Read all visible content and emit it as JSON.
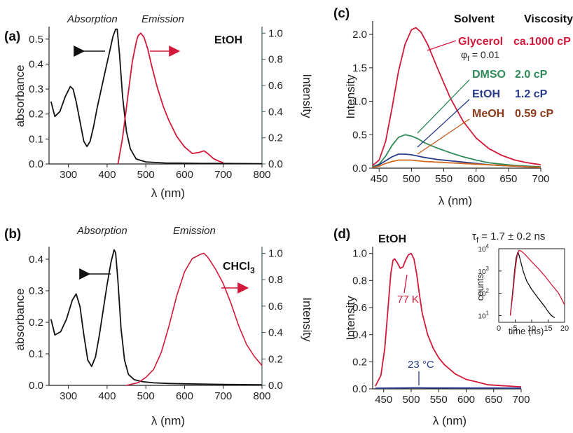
{
  "colors": {
    "black": "#111111",
    "red": "#d2193a",
    "green": "#2e8b57",
    "blue": "#2a3c8c",
    "brown": "#8b3a1a",
    "orange": "#d2691e",
    "axis_right": "#3d5c5c"
  },
  "panels": {
    "a": {
      "label": "(a)",
      "absorption_label": "Absorption",
      "emission_label": "Emission",
      "solvent": "EtOH",
      "ylabel_left": "absorbance",
      "ylabel_right": "Intensity",
      "xlabel": "λ (nm)",
      "xticks": [
        "300",
        "400",
        "500",
        "600",
        "700",
        "800"
      ],
      "yticks_left": [
        "0.0",
        "0.1",
        "0.2",
        "0.3",
        "0.4",
        "0.5"
      ],
      "yticks_right": [
        "0.0",
        "0.2",
        "0.4",
        "0.6",
        "0.8",
        "1.0"
      ]
    },
    "b": {
      "label": "(b)",
      "absorption_label": "Absorption",
      "emission_label": "Emission",
      "solvent": "CHCl",
      "solvent_sub": "3",
      "ylabel_left": "absorbance",
      "ylabel_right": "Intensity",
      "xlabel": "λ (nm)",
      "xticks": [
        "300",
        "400",
        "500",
        "600",
        "700",
        "800"
      ],
      "yticks_left": [
        "0.0",
        "0.1",
        "0.2",
        "0.3",
        "0.4"
      ],
      "yticks_right": [
        "0.0",
        "0.2",
        "0.4",
        "0.6",
        "0.8",
        "1.0"
      ]
    },
    "c": {
      "label": "(c)",
      "header_solvent": "Solvent",
      "header_viscosity": "Viscosity",
      "ylabel": "Intensity",
      "xlabel": "λ (nm)",
      "xticks": [
        "450",
        "500",
        "550",
        "600",
        "650",
        "700"
      ],
      "yticks": [
        "0.0",
        "0.5",
        "1.0",
        "1.5",
        "2.0"
      ],
      "phi_prefix": "φ",
      "phi_sub": "f",
      "phi_value": " = 0.01",
      "rows": [
        {
          "name": "Glycerol",
          "viscosity": "ca.1000 cP"
        },
        {
          "name": "DMSO",
          "viscosity": "2.0 cP"
        },
        {
          "name": "EtOH",
          "viscosity": "1.2 cP"
        },
        {
          "name": "MeOH",
          "viscosity": "0.59 cP"
        }
      ]
    },
    "d": {
      "label": "(d)",
      "solvent": "EtOH",
      "ylabel": "Intensity",
      "xlabel": "λ (nm)",
      "xticks": [
        "450",
        "500",
        "550",
        "600",
        "650",
        "700"
      ],
      "yticks": [
        "0.0",
        "0.2",
        "0.4",
        "0.6",
        "0.8",
        "1.0"
      ],
      "label_77k": "77 K",
      "label_23c": "23 °C",
      "tau_prefix": "τ",
      "tau_sub": "f",
      "tau_value": " = 1.7 ± 0.2 ns",
      "inset": {
        "ylabel": "counts",
        "xlabel": "time (ns)",
        "xticks": [
          "0",
          "5",
          "10",
          "15",
          "20"
        ],
        "ytick_base": "10",
        "ytick_exps": [
          "1",
          "2",
          "3",
          "4"
        ]
      }
    }
  },
  "chart_data": [
    {
      "panel": "a",
      "type": "line",
      "xlabel": "λ (nm)",
      "ylabel": "absorbance",
      "ylabel_right": "Intensity",
      "xlim": [
        250,
        800
      ],
      "ylim": [
        0,
        0.55
      ],
      "ylim_right": [
        0,
        1.05
      ],
      "series": [
        {
          "name": "Absorption",
          "axis": "left",
          "x": [
            255,
            265,
            278,
            292,
            305,
            312,
            320,
            330,
            340,
            348,
            356,
            365,
            375,
            385,
            395,
            405,
            415,
            422,
            426,
            432,
            440,
            450,
            460,
            475,
            500,
            550,
            600,
            650,
            700,
            800
          ],
          "y": [
            0.25,
            0.19,
            0.21,
            0.27,
            0.31,
            0.3,
            0.25,
            0.17,
            0.09,
            0.07,
            0.09,
            0.15,
            0.23,
            0.3,
            0.37,
            0.44,
            0.51,
            0.54,
            0.54,
            0.44,
            0.27,
            0.13,
            0.06,
            0.02,
            0.008,
            0.004,
            0.003,
            0.002,
            0.002,
            0.001
          ]
        },
        {
          "name": "Emission",
          "axis": "right",
          "x": [
            428,
            440,
            455,
            465,
            475,
            480,
            487,
            495,
            505,
            515,
            530,
            545,
            560,
            580,
            600,
            620,
            640,
            650,
            660,
            675,
            690,
            700
          ],
          "y": [
            0.0,
            0.2,
            0.55,
            0.78,
            0.93,
            0.98,
            1.0,
            0.97,
            0.88,
            0.75,
            0.58,
            0.44,
            0.33,
            0.21,
            0.13,
            0.08,
            0.09,
            0.1,
            0.08,
            0.04,
            0.02,
            0.01
          ]
        }
      ]
    },
    {
      "panel": "b",
      "type": "line",
      "xlabel": "λ (nm)",
      "ylabel": "absorbance",
      "ylabel_right": "Intensity",
      "xlim": [
        250,
        800
      ],
      "ylim": [
        0,
        0.44
      ],
      "ylim_right": [
        0,
        1.05
      ],
      "series": [
        {
          "name": "Absorption",
          "axis": "left",
          "x": [
            255,
            265,
            280,
            295,
            310,
            320,
            330,
            340,
            350,
            360,
            370,
            380,
            390,
            400,
            410,
            418,
            422,
            428,
            436,
            445,
            455,
            470,
            490,
            520,
            560,
            600,
            700,
            800
          ],
          "y": [
            0.21,
            0.16,
            0.17,
            0.21,
            0.27,
            0.29,
            0.25,
            0.16,
            0.08,
            0.06,
            0.09,
            0.16,
            0.24,
            0.32,
            0.39,
            0.43,
            0.42,
            0.33,
            0.18,
            0.08,
            0.035,
            0.018,
            0.012,
            0.008,
            0.006,
            0.005,
            0.003,
            0.002
          ]
        },
        {
          "name": "Emission",
          "axis": "right",
          "x": [
            450,
            480,
            500,
            520,
            540,
            560,
            580,
            600,
            620,
            640,
            650,
            660,
            680,
            700,
            720,
            740,
            760,
            780,
            800
          ],
          "y": [
            0.0,
            0.02,
            0.06,
            0.12,
            0.25,
            0.45,
            0.68,
            0.86,
            0.96,
            0.99,
            1.0,
            0.97,
            0.88,
            0.77,
            0.62,
            0.45,
            0.31,
            0.22,
            0.15
          ]
        }
      ]
    },
    {
      "panel": "c",
      "type": "line",
      "xlabel": "λ (nm)",
      "ylabel": "Intensity",
      "xlim": [
        440,
        700
      ],
      "ylim": [
        0,
        2.2
      ],
      "series": [
        {
          "name": "Glycerol",
          "x": [
            440,
            450,
            460,
            470,
            480,
            490,
            500,
            507,
            515,
            525,
            540,
            560,
            580,
            600,
            620,
            640,
            660,
            680,
            700
          ],
          "y": [
            0.04,
            0.12,
            0.4,
            0.9,
            1.45,
            1.85,
            2.07,
            2.1,
            2.03,
            1.85,
            1.5,
            1.05,
            0.7,
            0.45,
            0.29,
            0.19,
            0.12,
            0.08,
            0.05
          ]
        },
        {
          "name": "DMSO",
          "x": [
            440,
            450,
            460,
            470,
            480,
            490,
            500,
            510,
            520,
            540,
            560,
            580,
            600,
            620,
            640,
            660,
            680,
            700
          ],
          "y": [
            0.02,
            0.06,
            0.18,
            0.34,
            0.46,
            0.5,
            0.48,
            0.44,
            0.38,
            0.3,
            0.23,
            0.17,
            0.12,
            0.08,
            0.06,
            0.04,
            0.03,
            0.02
          ]
        },
        {
          "name": "EtOH",
          "x": [
            440,
            450,
            460,
            470,
            480,
            490,
            500,
            510,
            520,
            540,
            560,
            580,
            600,
            620,
            640,
            660,
            680,
            700
          ],
          "y": [
            0.01,
            0.05,
            0.11,
            0.17,
            0.21,
            0.21,
            0.2,
            0.18,
            0.16,
            0.13,
            0.11,
            0.09,
            0.07,
            0.05,
            0.04,
            0.03,
            0.02,
            0.01
          ]
        },
        {
          "name": "MeOH",
          "x": [
            440,
            450,
            460,
            470,
            480,
            490,
            500,
            510,
            520,
            540,
            560,
            580,
            600,
            620,
            640,
            660,
            680,
            700
          ],
          "y": [
            0.01,
            0.03,
            0.07,
            0.1,
            0.12,
            0.12,
            0.12,
            0.11,
            0.1,
            0.09,
            0.08,
            0.07,
            0.06,
            0.05,
            0.04,
            0.03,
            0.02,
            0.01
          ]
        }
      ]
    },
    {
      "panel": "d",
      "type": "line",
      "xlabel": "λ (nm)",
      "ylabel": "Intensity",
      "xlim": [
        430,
        700
      ],
      "ylim": [
        0,
        1.05
      ],
      "series": [
        {
          "name": "77 K",
          "x": [
            435,
            445,
            452,
            458,
            463,
            467,
            470,
            475,
            480,
            485,
            490,
            495,
            500,
            505,
            510,
            515,
            520,
            530,
            540,
            550,
            560,
            580,
            600,
            620,
            640,
            660,
            680,
            700
          ],
          "y": [
            0.02,
            0.1,
            0.3,
            0.6,
            0.85,
            0.95,
            0.96,
            0.93,
            0.89,
            0.9,
            0.95,
            0.99,
            1.0,
            0.96,
            0.85,
            0.7,
            0.56,
            0.4,
            0.3,
            0.23,
            0.18,
            0.11,
            0.07,
            0.05,
            0.03,
            0.025,
            0.02,
            0.015
          ]
        },
        {
          "name": "23 °C",
          "x": [
            435,
            450,
            470,
            490,
            500,
            506,
            512,
            530,
            560,
            600,
            650,
            700
          ],
          "y": [
            0.005,
            0.005,
            0.006,
            0.007,
            0.008,
            0.008,
            0.008,
            0.007,
            0.007,
            0.006,
            0.006,
            0.005
          ]
        }
      ]
    },
    {
      "panel": "d-inset",
      "type": "line",
      "xlabel": "time (ns)",
      "ylabel": "counts",
      "yscale": "log",
      "xlim": [
        0,
        20
      ],
      "ylim": [
        5,
        10000
      ],
      "series": [
        {
          "name": "EtOH decay",
          "x": [
            3.5,
            4.2,
            4.8,
            5.3,
            5.8,
            6.2,
            6.8,
            7.5,
            8.5,
            10,
            12,
            14,
            15,
            16,
            17
          ],
          "y": [
            10,
            100,
            1000,
            4000,
            7000,
            5000,
            2200,
            900,
            350,
            150,
            60,
            25,
            15,
            10,
            8
          ]
        },
        {
          "name": "77 K decay",
          "x": [
            3.5,
            4.3,
            5.0,
            5.6,
            6.2,
            7,
            8,
            9,
            10,
            12,
            14,
            16,
            18,
            19,
            20
          ],
          "y": [
            10,
            100,
            1200,
            5000,
            8500,
            7500,
            5500,
            3800,
            2600,
            1300,
            600,
            250,
            110,
            60,
            30
          ]
        }
      ]
    }
  ]
}
